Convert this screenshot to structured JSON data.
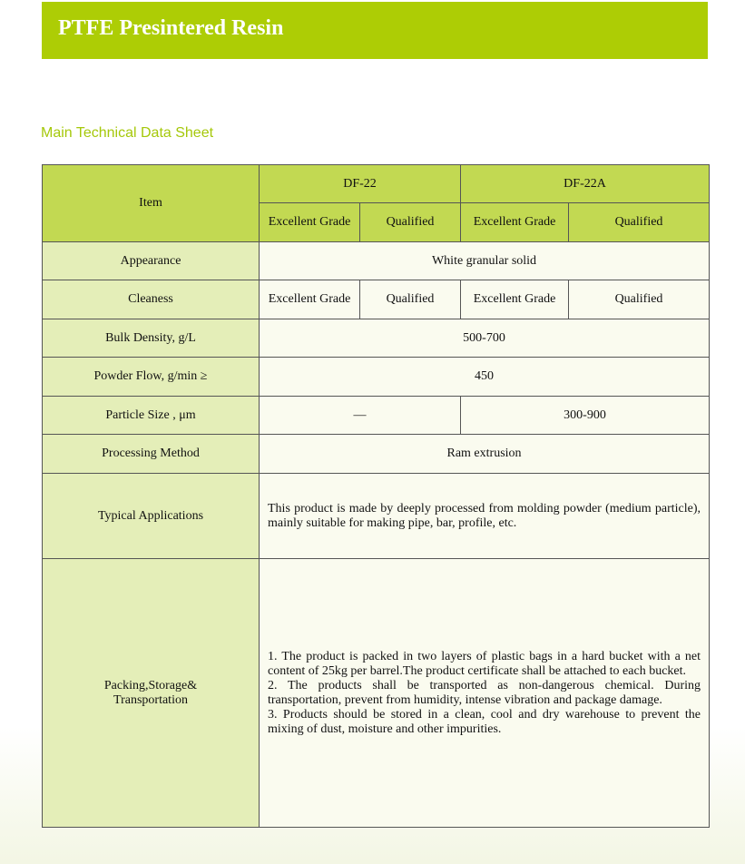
{
  "title": "PTFE Presintered Resin",
  "subtitle": "Main Technical Data Sheet",
  "table": {
    "item_header": "Item",
    "products": [
      "DF-22",
      "DF-22A"
    ],
    "grades": [
      "Excellent Grade",
      "Qualified",
      "Excellent Grade",
      "Qualified"
    ],
    "rows": {
      "appearance": {
        "label": "Appearance",
        "value": "White granular solid"
      },
      "cleaness": {
        "label": "Cleaness",
        "values": [
          "Excellent Grade",
          "Qualified",
          "Excellent Grade",
          "Qualified"
        ]
      },
      "bulk_density": {
        "label": "Bulk Density, g/L",
        "value": "500-700"
      },
      "powder_flow": {
        "label": "Powder Flow, g/min ≥",
        "value": "450"
      },
      "particle_size": {
        "label": "Particle Size , μm",
        "values": [
          "—",
          "300-900"
        ]
      },
      "processing": {
        "label": "Processing Method",
        "value": "Ram extrusion"
      },
      "applications": {
        "label": "Typical Applications",
        "value": "This product is made by deeply processed from molding powder (medium particle), mainly suitable for making pipe, bar, profile, etc."
      },
      "packing": {
        "label_line1": "Packing,Storage&",
        "label_line2": "Transportation",
        "lines": [
          "1. The product is packed in two layers of plastic bags in a hard bucket with a net content of 25kg per barrel.The product certificate shall be attached to each bucket.",
          "2. The products shall be transported as non-dangerous chemical. During transportation, prevent from humidity, intense vibration and package damage.",
          "3. Products should be stored in a clean, cool and dry warehouse to prevent the mixing of dust, moisture and other impurities."
        ]
      }
    }
  },
  "colors": {
    "banner": "#adcd05",
    "header": "#c2d952",
    "item_column": "#e4eeb8",
    "cell": "#fafbef",
    "subtitle": "#a5c80a"
  }
}
